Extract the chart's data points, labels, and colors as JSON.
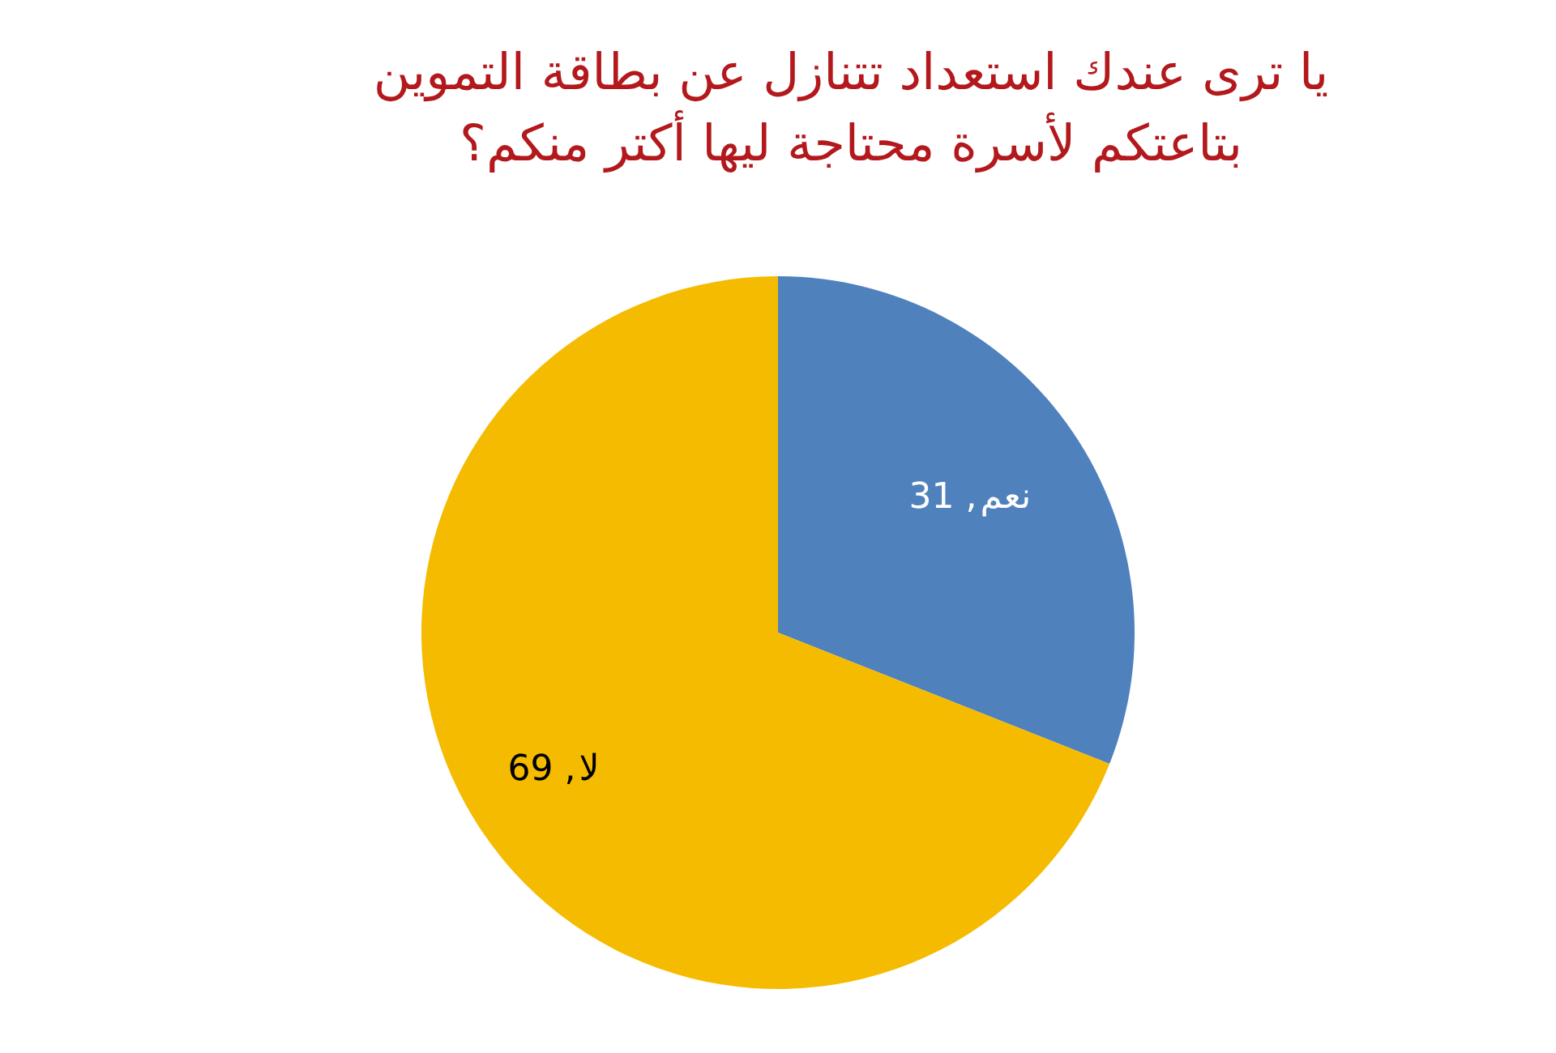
{
  "chart_data": {
    "type": "pie",
    "title": "يا ترى عندك استعداد تتنازل عن بطاقة التموين\nبتاعتكم لأسرة محتاجة ليها أكتر منكم؟",
    "categories": [
      "نعم",
      "لا"
    ],
    "values": [
      31,
      69
    ],
    "colors": [
      "#4f81bd",
      "#f5bb00"
    ],
    "value_labels": [
      ", 31",
      ", 69"
    ]
  }
}
